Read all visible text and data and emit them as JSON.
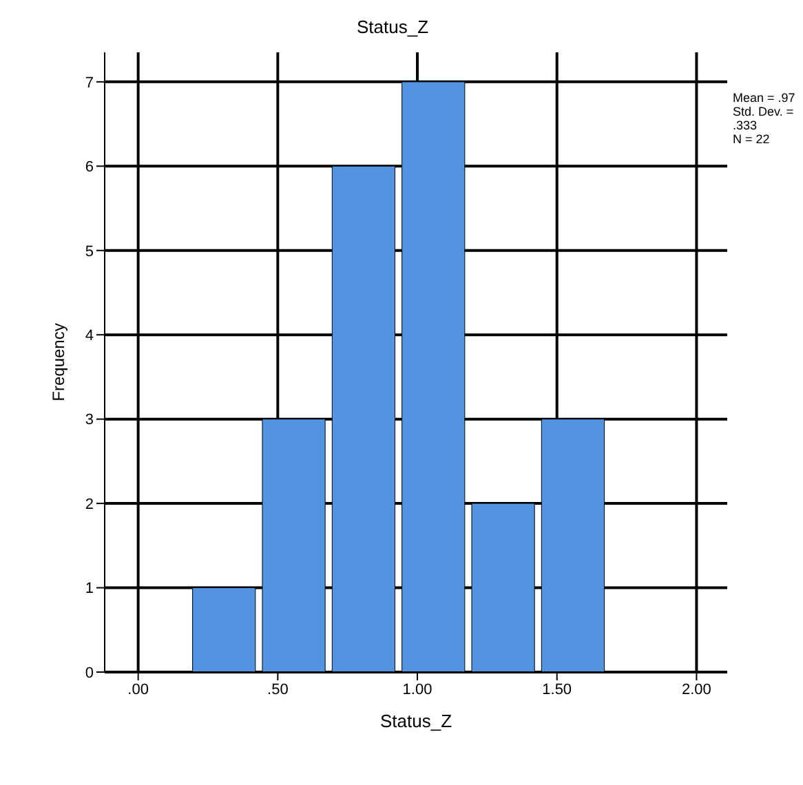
{
  "chart_data": {
    "type": "histogram",
    "title": "Status_Z",
    "xlabel": "Status_Z",
    "ylabel": "Frequency",
    "bins": [
      0.18,
      0.43,
      0.68,
      0.93,
      1.18,
      1.43,
      1.68
    ],
    "values": [
      1,
      3,
      6,
      7,
      2,
      3
    ],
    "color": "#5294e2",
    "xlim": [
      -0.12,
      2.11
    ],
    "xticks": [
      {
        "value": 0,
        "label": ".00"
      },
      {
        "value": 0.5,
        "label": ".50"
      },
      {
        "value": 1,
        "label": "1.00"
      },
      {
        "value": 1.5,
        "label": "1.50"
      },
      {
        "value": 2,
        "label": "2.00"
      }
    ],
    "ylim": [
      0,
      7.35
    ],
    "yticks": [
      0,
      1,
      2,
      3,
      4,
      5,
      6,
      7
    ],
    "grid": true,
    "annotations": [
      "Mean = .97\nStd. Dev. = .333\nN = 22"
    ]
  }
}
